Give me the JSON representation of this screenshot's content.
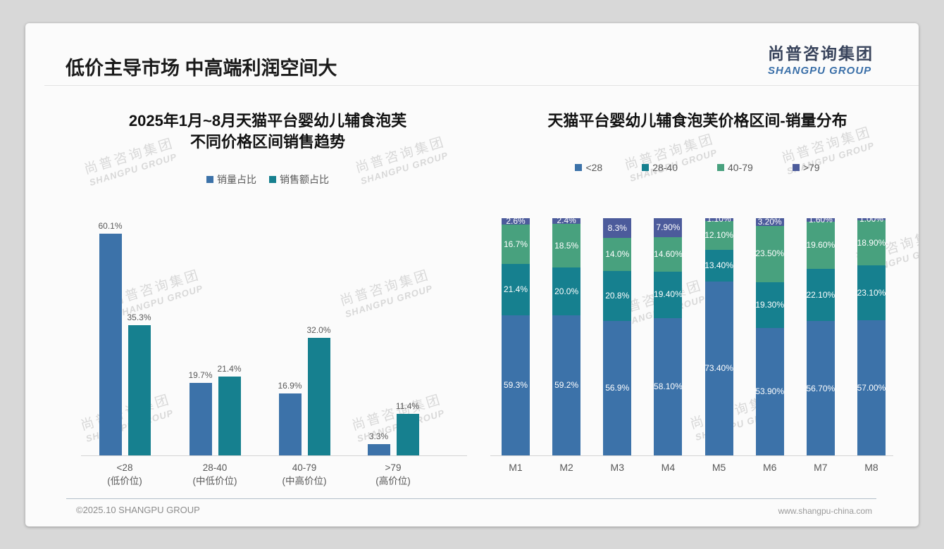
{
  "slide": {
    "title": "低价主导市场 中高端利润空间大",
    "logo": {
      "cn": "尚普咨询集团",
      "en": "SHANGPU GROUP"
    },
    "watermark": {
      "cn": "尚普咨询集团",
      "en": "SHANGPU GROUP"
    },
    "footer": {
      "copyright": "©2025.10 SHANGPU GROUP",
      "website": "www.shangpu-china.com"
    }
  },
  "colors": {
    "blue": "#3C72A9",
    "teal": "#16808F",
    "green": "#48A17E",
    "slate": "#4C5B9B"
  },
  "chart_data": [
    {
      "type": "bar",
      "title": "2025年1月~8月天猫平台婴幼儿辅食泡芙 不同价格区间销售趋势",
      "title_lines": [
        "2025年1月~8月天猫平台婴幼儿辅食泡芙",
        "不同价格区间销售趋势"
      ],
      "categories": [
        [
          "<28",
          "(低价位)"
        ],
        [
          "28-40",
          "(中低价位)"
        ],
        [
          "40-79",
          "(中高价位)"
        ],
        [
          ">79",
          "(高价位)"
        ]
      ],
      "series": [
        {
          "name": "销量占比",
          "color": "#3C72A9",
          "values": [
            60.1,
            19.7,
            16.9,
            3.3
          ],
          "labels": [
            "60.1%",
            "19.7%",
            "16.9%",
            "3.3%"
          ]
        },
        {
          "name": "销售额占比",
          "color": "#16808F",
          "values": [
            35.3,
            21.4,
            32.0,
            11.4
          ],
          "labels": [
            "35.3%",
            "21.4%",
            "32.0%",
            "11.4%"
          ]
        }
      ],
      "unit": "%",
      "ylim": [
        0,
        65
      ],
      "grid": false,
      "legend_position": "top"
    },
    {
      "type": "bar",
      "stacked": true,
      "title": "天猫平台婴幼儿辅食泡芙价格区间-销量分布",
      "categories": [
        "M1",
        "M2",
        "M3",
        "M4",
        "M5",
        "M6",
        "M7",
        "M8"
      ],
      "series": [
        {
          "name": "<28",
          "color": "#3C72A9",
          "values": [
            59.3,
            59.2,
            56.9,
            58.1,
            73.4,
            53.9,
            56.7,
            57.0
          ],
          "labels": [
            "59.3%",
            "59.2%",
            "56.9%",
            "58.10%",
            "73.40%",
            "53.90%",
            "56.70%",
            "57.00%"
          ]
        },
        {
          "name": "28-40",
          "color": "#16808F",
          "values": [
            21.4,
            20.0,
            20.8,
            19.4,
            13.4,
            19.3,
            22.1,
            23.1
          ],
          "labels": [
            "21.4%",
            "20.0%",
            "20.8%",
            "19.40%",
            "13.40%",
            "19.30%",
            "22.10%",
            "23.10%"
          ]
        },
        {
          "name": "40-79",
          "color": "#48A17E",
          "values": [
            16.7,
            18.5,
            14.0,
            14.6,
            12.1,
            23.5,
            19.6,
            18.9
          ],
          "labels": [
            "16.7%",
            "18.5%",
            "14.0%",
            "14.60%",
            "12.10%",
            "23.50%",
            "19.60%",
            "18.90%"
          ]
        },
        {
          "name": ">79",
          "color": "#4C5B9B",
          "values": [
            2.6,
            2.4,
            8.3,
            7.9,
            1.1,
            3.2,
            1.6,
            1.0
          ],
          "labels": [
            "2.6%",
            "2.4%",
            "8.3%",
            "7.90%",
            "1.10%",
            "3.20%",
            "1.60%",
            "1.00%"
          ]
        }
      ],
      "unit": "%",
      "ylim": [
        0,
        100
      ],
      "grid": false,
      "legend_position": "top"
    }
  ]
}
